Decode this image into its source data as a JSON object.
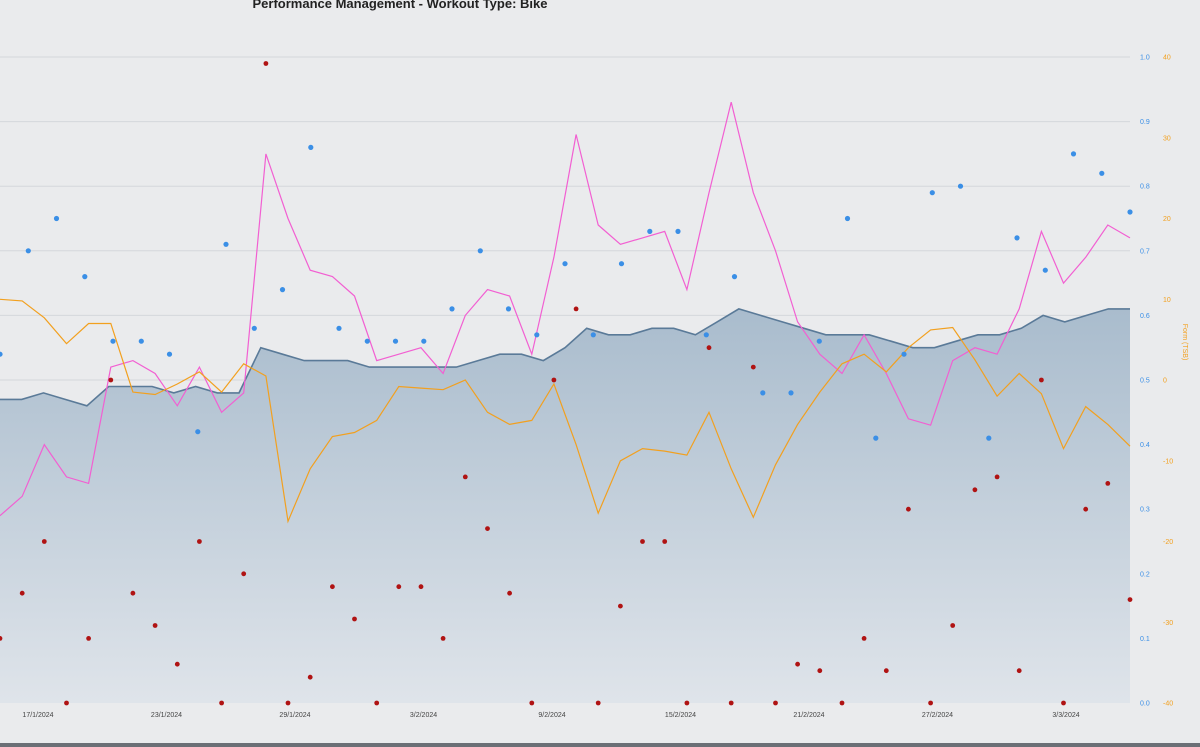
{
  "chart_data": {
    "type": "line",
    "title": "Performance Management - Workout Type: Bike",
    "x_tick_labels": [
      "17/1/2024",
      "23/1/2024",
      "29/1/2024",
      "3/2/2024",
      "9/2/2024",
      "15/2/2024",
      "21/2/2024",
      "27/2/2024",
      "3/3/2024"
    ],
    "y_right_inner": {
      "ticks": [
        "0.0",
        "0.1",
        "0.2",
        "0.3",
        "0.4",
        "0.5",
        "0.6",
        "0.7",
        "0.8",
        "0.9",
        "1.0"
      ],
      "range": [
        0,
        1
      ],
      "color": "#3b8fe6"
    },
    "y_right_outer": {
      "label": "Form (TSB)",
      "ticks": [
        "-40",
        "-30",
        "-20",
        "-10",
        "0",
        "10",
        "20",
        "30",
        "40"
      ],
      "range": [
        -40,
        40
      ],
      "color": "#f2a01f"
    },
    "colors": {
      "fitness_area": "#5a7a98",
      "fatigue_line": "#f25fd2",
      "form_line": "#f2a01f",
      "blue_dots": "#3b8fe6",
      "red_dots": "#b01313"
    },
    "series": [
      {
        "values": [
          0.47,
          0.47,
          0.48,
          0.47,
          0.46,
          0.49,
          0.49,
          0.49,
          0.48,
          0.49,
          0.48,
          0.48,
          0.55,
          0.54,
          0.53,
          0.53,
          0.53,
          0.52,
          0.52,
          0.52,
          0.52,
          0.52,
          0.53,
          0.54,
          0.54,
          0.53,
          0.55,
          0.58,
          0.57,
          0.57,
          0.58,
          0.58,
          0.57,
          0.59,
          0.61,
          0.6,
          0.59,
          0.58,
          0.57,
          0.57,
          0.57,
          0.56,
          0.55,
          0.55,
          0.56,
          0.57,
          0.57,
          0.58,
          0.6,
          0.59,
          0.6,
          0.61,
          0.61
        ]
      },
      {
        "values": [
          0.29,
          0.32,
          0.4,
          0.35,
          0.34,
          0.52,
          0.53,
          0.51,
          0.46,
          0.52,
          0.45,
          0.48,
          0.85,
          0.75,
          0.67,
          0.66,
          0.63,
          0.53,
          0.54,
          0.55,
          0.51,
          0.6,
          0.64,
          0.63,
          0.54,
          0.69,
          0.88,
          0.74,
          0.71,
          0.72,
          0.73,
          0.64,
          0.79,
          0.93,
          0.79,
          0.7,
          0.59,
          0.54,
          0.51,
          0.57,
          0.51,
          0.44,
          0.43,
          0.53,
          0.55,
          0.54,
          0.61,
          0.73,
          0.65,
          0.69,
          0.74,
          0.72
        ]
      },
      {
        "values": [
          10,
          9.8,
          7.7,
          4.5,
          7,
          7,
          -1.5,
          -1.8,
          -0.5,
          1,
          -1.5,
          2,
          0.5,
          -17.5,
          -11,
          -7,
          -6.5,
          -5,
          -0.8,
          -1,
          -1.2,
          0,
          -4,
          -5.5,
          -5,
          -0.5,
          -8,
          -16.5,
          -10,
          -8.5,
          -8.8,
          -9.3,
          -4,
          -11,
          -17,
          -10.5,
          -5.5,
          -1.5,
          2,
          3.2,
          1,
          4,
          6.2,
          6.5,
          2.5,
          -2,
          0.8,
          -1.7,
          -8.5,
          -3.3,
          -5.5,
          -8.2
        ]
      }
    ],
    "blue_dots": [
      0.54,
      0.7,
      0.75,
      0.66,
      0.56,
      0.56,
      0.54,
      0.42,
      0.71,
      0.58,
      0.64,
      0.86,
      0.58,
      0.56,
      0.56,
      0.56,
      0.61,
      0.7,
      0.61,
      0.57,
      0.68,
      0.57,
      0.68,
      0.73,
      0.73,
      0.57,
      0.66,
      0.48,
      0.48,
      0.56,
      0.75,
      0.41,
      0.54,
      0.79,
      0.8,
      0.41,
      0.72,
      0.67,
      0.85,
      0.82,
      0.76
    ],
    "red_dots": [
      0.1,
      0.17,
      0.25,
      0.0,
      0.1,
      0.5,
      0.17,
      0.12,
      0.06,
      0.25,
      0.0,
      0.2,
      0.99,
      0.0,
      0.04,
      0.18,
      0.13,
      0.0,
      0.18,
      0.18,
      0.1,
      0.35,
      0.27,
      0.17,
      0.0,
      0.5,
      0.61,
      0.0,
      0.15,
      0.25,
      0.25,
      0.0,
      0.55,
      0.0,
      0.52,
      0.0,
      0.06,
      0.05,
      0.0,
      0.1,
      0.05,
      0.3,
      0.0,
      0.12,
      0.33,
      0.35,
      0.05,
      0.5,
      0.0,
      0.3,
      0.34,
      0.16
    ]
  }
}
